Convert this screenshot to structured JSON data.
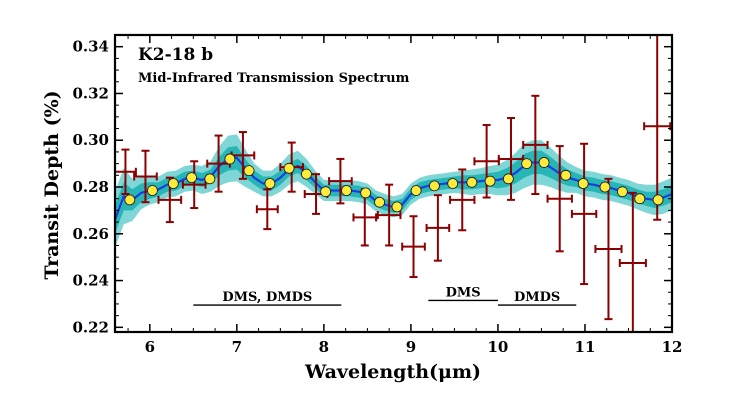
{
  "chart_data": {
    "type": "scatter",
    "title": "K2-18 b",
    "subtitle": "Mid-Infrared Transmission Spectrum",
    "xlabel": "Wavelength(μm)",
    "ylabel": "Transit Depth (%)",
    "xlim": [
      5.6,
      12.0
    ],
    "ylim": [
      0.218,
      0.345
    ],
    "xticks": [
      6,
      7,
      8,
      9,
      10,
      11,
      12
    ],
    "yticks": [
      0.22,
      0.24,
      0.26,
      0.28,
      0.3,
      0.32,
      0.34
    ],
    "ytick_labels": [
      "0.22",
      "0.24",
      "0.26",
      "0.28",
      "0.30",
      "0.32",
      "0.34"
    ],
    "grid": false,
    "colors": {
      "observed": "#8b0000",
      "model_binned": "#ffeb3b",
      "model_line": "#1a3de0",
      "band_outer": "#7fd6d6",
      "band_inner": "#27b5b5"
    },
    "observed": {
      "x": [
        5.72,
        5.95,
        6.23,
        6.51,
        6.79,
        7.07,
        7.35,
        7.63,
        7.91,
        8.19,
        8.47,
        8.75,
        9.03,
        9.31,
        9.59,
        9.87,
        10.15,
        10.43,
        10.71,
        10.99,
        11.27,
        11.55,
        11.83
      ],
      "y": [
        0.2865,
        0.2845,
        0.2745,
        0.281,
        0.29,
        0.2935,
        0.2705,
        0.2885,
        0.277,
        0.2825,
        0.267,
        0.268,
        0.2545,
        0.2625,
        0.2745,
        0.291,
        0.292,
        0.298,
        0.275,
        0.2685,
        0.2535,
        0.2475,
        0.306
      ],
      "yerr": [
        0.0095,
        0.011,
        0.0095,
        0.01,
        0.012,
        0.01,
        0.0085,
        0.0105,
        0.0085,
        0.0095,
        0.012,
        0.013,
        0.013,
        0.014,
        0.013,
        0.0155,
        0.0175,
        0.021,
        0.0225,
        0.03,
        0.03,
        0.03,
        0.04
      ],
      "xerr": [
        0.12,
        0.13,
        0.13,
        0.13,
        0.13,
        0.13,
        0.12,
        0.13,
        0.13,
        0.13,
        0.13,
        0.13,
        0.13,
        0.13,
        0.14,
        0.14,
        0.14,
        0.14,
        0.14,
        0.14,
        0.15,
        0.15,
        0.15
      ]
    },
    "model_binned": {
      "x": [
        5.77,
        6.03,
        6.27,
        6.48,
        6.69,
        6.92,
        7.14,
        7.38,
        7.6,
        7.8,
        8.02,
        8.26,
        8.48,
        8.64,
        8.84,
        9.06,
        9.27,
        9.48,
        9.7,
        9.91,
        10.12,
        10.33,
        10.53,
        10.78,
        10.98,
        11.23,
        11.43,
        11.63,
        11.84
      ],
      "y": [
        0.2745,
        0.2785,
        0.2815,
        0.284,
        0.2835,
        0.292,
        0.287,
        0.2815,
        0.288,
        0.2855,
        0.278,
        0.2785,
        0.2775,
        0.2735,
        0.2715,
        0.2785,
        0.2805,
        0.2815,
        0.282,
        0.2825,
        0.2835,
        0.29,
        0.2905,
        0.285,
        0.2815,
        0.28,
        0.278,
        0.275,
        0.2745
      ]
    },
    "model_line": {
      "x": [
        5.6,
        5.7,
        5.8,
        5.9,
        6.0,
        6.1,
        6.2,
        6.3,
        6.4,
        6.5,
        6.6,
        6.7,
        6.8,
        6.9,
        7.0,
        7.1,
        7.2,
        7.3,
        7.4,
        7.5,
        7.6,
        7.7,
        7.8,
        7.9,
        8.0,
        8.1,
        8.2,
        8.3,
        8.4,
        8.5,
        8.6,
        8.7,
        8.8,
        8.9,
        9.0,
        9.1,
        9.2,
        9.3,
        9.4,
        9.5,
        9.6,
        9.7,
        9.8,
        9.9,
        10.0,
        10.1,
        10.2,
        10.3,
        10.4,
        10.5,
        10.6,
        10.7,
        10.8,
        10.9,
        11.0,
        11.1,
        11.2,
        11.3,
        11.4,
        11.5,
        11.6,
        11.7,
        11.8,
        11.9,
        12.0
      ],
      "y": [
        0.266,
        0.276,
        0.2745,
        0.2775,
        0.2785,
        0.279,
        0.281,
        0.2815,
        0.2835,
        0.284,
        0.283,
        0.2845,
        0.289,
        0.292,
        0.2925,
        0.288,
        0.284,
        0.2815,
        0.2815,
        0.284,
        0.2875,
        0.289,
        0.286,
        0.282,
        0.2785,
        0.2785,
        0.2785,
        0.2785,
        0.278,
        0.277,
        0.274,
        0.2725,
        0.2715,
        0.2725,
        0.277,
        0.2795,
        0.2805,
        0.281,
        0.2815,
        0.282,
        0.282,
        0.282,
        0.2825,
        0.283,
        0.283,
        0.284,
        0.286,
        0.289,
        0.2905,
        0.2905,
        0.2885,
        0.286,
        0.284,
        0.283,
        0.2815,
        0.281,
        0.28,
        0.2795,
        0.2785,
        0.2775,
        0.276,
        0.275,
        0.2745,
        0.2755,
        0.277
      ],
      "inner_halfwidth": [
        0.006,
        0.006,
        0.0045,
        0.004,
        0.0035,
        0.003,
        0.003,
        0.003,
        0.003,
        0.003,
        0.003,
        0.003,
        0.004,
        0.005,
        0.005,
        0.004,
        0.003,
        0.003,
        0.003,
        0.003,
        0.003,
        0.003,
        0.003,
        0.0025,
        0.0025,
        0.0025,
        0.0025,
        0.0025,
        0.0025,
        0.0025,
        0.0025,
        0.0025,
        0.0025,
        0.0025,
        0.0025,
        0.0025,
        0.0025,
        0.0025,
        0.0025,
        0.0025,
        0.003,
        0.003,
        0.003,
        0.003,
        0.0035,
        0.004,
        0.0045,
        0.005,
        0.005,
        0.005,
        0.0045,
        0.004,
        0.0035,
        0.003,
        0.003,
        0.003,
        0.003,
        0.003,
        0.003,
        0.003,
        0.003,
        0.003,
        0.0035,
        0.0035,
        0.0035
      ],
      "outer_halfwidth": [
        0.012,
        0.012,
        0.009,
        0.007,
        0.006,
        0.0055,
        0.0055,
        0.0055,
        0.0055,
        0.0055,
        0.006,
        0.0065,
        0.0085,
        0.01,
        0.01,
        0.008,
        0.006,
        0.0055,
        0.0055,
        0.006,
        0.0065,
        0.0065,
        0.006,
        0.005,
        0.0045,
        0.0045,
        0.0045,
        0.0045,
        0.0045,
        0.0045,
        0.0045,
        0.0045,
        0.0045,
        0.0045,
        0.0045,
        0.0045,
        0.0045,
        0.0045,
        0.0045,
        0.0045,
        0.005,
        0.0055,
        0.0055,
        0.006,
        0.0065,
        0.0075,
        0.0085,
        0.0095,
        0.0095,
        0.0095,
        0.0085,
        0.0075,
        0.0065,
        0.0055,
        0.0055,
        0.0055,
        0.0055,
        0.0055,
        0.0055,
        0.0055,
        0.0055,
        0.006,
        0.0065,
        0.007,
        0.007
      ]
    },
    "annotations": [
      {
        "label": "DMS, DMDS",
        "x_start": 6.5,
        "x_end": 8.2,
        "y": 0.2295
      },
      {
        "label": "DMS",
        "x_start": 9.2,
        "x_end": 10.0,
        "y": 0.2315
      },
      {
        "label": "DMDS",
        "x_start": 10.0,
        "x_end": 10.9,
        "y": 0.2295
      }
    ]
  }
}
